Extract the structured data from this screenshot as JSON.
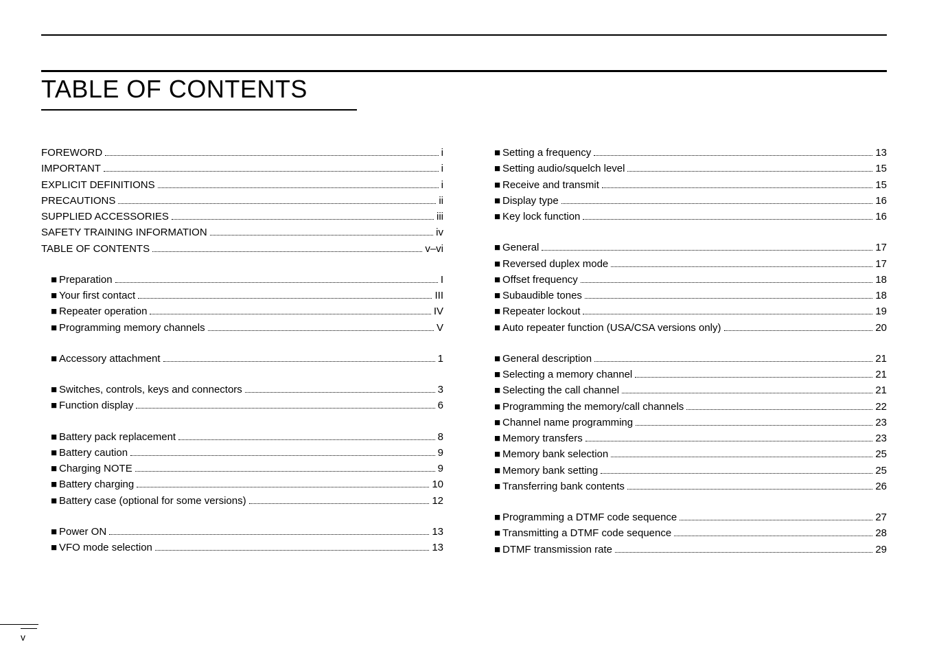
{
  "title": "TABLE OF CONTENTS",
  "page_number": "v",
  "colors": {
    "text": "#000000",
    "background": "#ffffff",
    "rule": "#000000"
  },
  "typography": {
    "title_fontsize": 36,
    "entry_fontsize": 15,
    "font_family": "Arial, Helvetica, sans-serif"
  },
  "left_column": [
    {
      "type": "entry",
      "sub": false,
      "label": "FOREWORD",
      "page": "i"
    },
    {
      "type": "entry",
      "sub": false,
      "label": "IMPORTANT",
      "page": "i"
    },
    {
      "type": "entry",
      "sub": false,
      "label": "EXPLICIT DEFINITIONS",
      "page": "i"
    },
    {
      "type": "entry",
      "sub": false,
      "label": "PRECAUTIONS",
      "page": "ii"
    },
    {
      "type": "entry",
      "sub": false,
      "label": "SUPPLIED ACCESSORIES",
      "page": "iii"
    },
    {
      "type": "entry",
      "sub": false,
      "label": "SAFETY TRAINING INFORMATION",
      "page": "iv"
    },
    {
      "type": "entry",
      "sub": false,
      "label": "TABLE OF CONTENTS",
      "page": "v–vi"
    },
    {
      "type": "gap"
    },
    {
      "type": "entry",
      "sub": true,
      "marker": "■",
      "label": "Preparation",
      "page": "I"
    },
    {
      "type": "entry",
      "sub": true,
      "marker": "■",
      "label": "Your first contact",
      "page": "III"
    },
    {
      "type": "entry",
      "sub": true,
      "marker": "■",
      "label": "Repeater operation",
      "page": "IV"
    },
    {
      "type": "entry",
      "sub": true,
      "marker": "■",
      "label": "Programming memory channels",
      "page": "V"
    },
    {
      "type": "gap"
    },
    {
      "type": "entry",
      "sub": true,
      "marker": "■",
      "label": "Accessory attachment",
      "page": "1"
    },
    {
      "type": "gap"
    },
    {
      "type": "entry",
      "sub": true,
      "marker": "■",
      "label": "Switches, controls, keys and connectors",
      "page": "3"
    },
    {
      "type": "entry",
      "sub": true,
      "marker": "■",
      "label": "Function display",
      "page": "6"
    },
    {
      "type": "gap"
    },
    {
      "type": "entry",
      "sub": true,
      "marker": "■",
      "label": "Battery pack replacement",
      "page": "8"
    },
    {
      "type": "entry",
      "sub": true,
      "marker": "■",
      "label": "Battery caution",
      "page": "9"
    },
    {
      "type": "entry",
      "sub": true,
      "marker": "■",
      "label": "Charging NOTE",
      "page": "9"
    },
    {
      "type": "entry",
      "sub": true,
      "marker": "■",
      "label": "Battery charging",
      "page": "10"
    },
    {
      "type": "entry",
      "sub": true,
      "marker": "■",
      "label": "Battery case (optional for some versions)",
      "page": "12"
    },
    {
      "type": "gap"
    },
    {
      "type": "entry",
      "sub": true,
      "marker": "■",
      "label": "Power ON",
      "page": "13"
    },
    {
      "type": "entry",
      "sub": true,
      "marker": "■",
      "label": "VFO mode selection",
      "page": "13"
    }
  ],
  "right_column": [
    {
      "type": "entry",
      "sub": true,
      "marker": "■",
      "label": "Setting a frequency",
      "page": "13"
    },
    {
      "type": "entry",
      "sub": true,
      "marker": "■",
      "label": "Setting audio/squelch level",
      "page": "15"
    },
    {
      "type": "entry",
      "sub": true,
      "marker": "■",
      "label": "Receive and transmit",
      "page": "15"
    },
    {
      "type": "entry",
      "sub": true,
      "marker": "■",
      "label": "Display type",
      "page": "16"
    },
    {
      "type": "entry",
      "sub": true,
      "marker": "■",
      "label": "Key lock function",
      "page": "16"
    },
    {
      "type": "gap"
    },
    {
      "type": "entry",
      "sub": true,
      "marker": "■",
      "label": "General",
      "page": "17"
    },
    {
      "type": "entry",
      "sub": true,
      "marker": "■",
      "label": "Reversed duplex mode",
      "page": "17"
    },
    {
      "type": "entry",
      "sub": true,
      "marker": "■",
      "label": "Offset frequency",
      "page": "18"
    },
    {
      "type": "entry",
      "sub": true,
      "marker": "■",
      "label": "Subaudible tones",
      "page": "18"
    },
    {
      "type": "entry",
      "sub": true,
      "marker": "■",
      "label": "Repeater lockout",
      "page": "19"
    },
    {
      "type": "entry",
      "sub": true,
      "marker": "■",
      "label": "Auto repeater function (USA/CSA versions only)",
      "page": "20"
    },
    {
      "type": "gap"
    },
    {
      "type": "entry",
      "sub": true,
      "marker": "■",
      "label": "General description",
      "page": "21"
    },
    {
      "type": "entry",
      "sub": true,
      "marker": "■",
      "label": "Selecting a memory channel",
      "page": "21"
    },
    {
      "type": "entry",
      "sub": true,
      "marker": "■",
      "label": "Selecting the call channel",
      "page": "21"
    },
    {
      "type": "entry",
      "sub": true,
      "marker": "■",
      "label": "Programming the memory/call channels",
      "page": "22"
    },
    {
      "type": "entry",
      "sub": true,
      "marker": "■",
      "label": "Channel name programming",
      "page": "23"
    },
    {
      "type": "entry",
      "sub": true,
      "marker": "■",
      "label": "Memory transfers",
      "page": "23"
    },
    {
      "type": "entry",
      "sub": true,
      "marker": "■",
      "label": "Memory bank selection",
      "page": "25"
    },
    {
      "type": "entry",
      "sub": true,
      "marker": "■",
      "label": "Memory bank setting",
      "page": "25"
    },
    {
      "type": "entry",
      "sub": true,
      "marker": "■",
      "label": "Transferring bank contents",
      "page": "26"
    },
    {
      "type": "gap"
    },
    {
      "type": "entry",
      "sub": true,
      "marker": "■",
      "label": "Programming a DTMF code sequence",
      "page": "27"
    },
    {
      "type": "entry",
      "sub": true,
      "marker": "■",
      "label": "Transmitting a DTMF code sequence",
      "page": "28"
    },
    {
      "type": "entry",
      "sub": true,
      "marker": "■",
      "label": "DTMF transmission rate",
      "page": "29"
    }
  ]
}
